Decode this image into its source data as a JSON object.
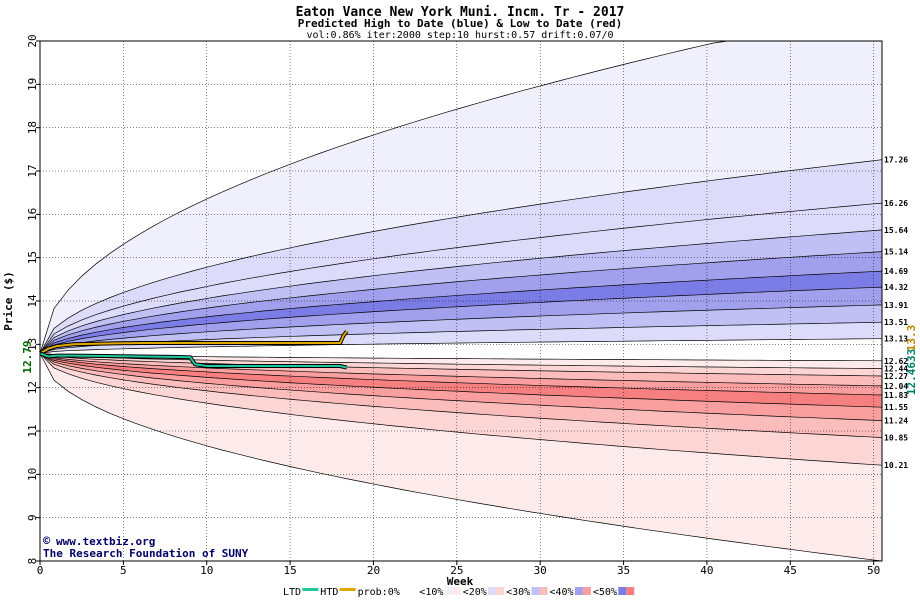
{
  "chart_data": {
    "type": "area",
    "title": "Eaton Vance New York Muni. Incm. Tr - 2017",
    "subtitle": "Predicted High to Date (blue) &  Low to Date (red)",
    "params": "vol:0.86% iter:2000 step:10 hurst:0.57 drift:0.07/0",
    "xlabel": "Week",
    "ylabel": "Price ($)",
    "xlim": [
      0,
      50.5
    ],
    "ylim": [
      8,
      20
    ],
    "x_ticks": [
      0,
      5,
      10,
      15,
      20,
      25,
      30,
      35,
      40,
      45,
      50
    ],
    "y_ticks": [
      8,
      9,
      10,
      11,
      12,
      13,
      14,
      15,
      16,
      17,
      18,
      19,
      20
    ],
    "grid": true,
    "start_price": "12.79",
    "current_labels": {
      "ltd": "12.4633",
      "htd": "13.3"
    },
    "colors": {
      "band0": "#ffffff",
      "band10": "#f0f0fc",
      "band20": "#dcdcfa",
      "band30": "#c0c0f4",
      "band40": "#a0a0ec",
      "band50": "#7c7ce6",
      "rband10": "#fdeaea",
      "rband20": "#fcd5d5",
      "rband30": "#fbbcbc",
      "rband40": "#fa9f9f",
      "rband50": "#f67f7f",
      "htd_line": "#e0a800",
      "ltd_line": "#20c8a0",
      "text_dark": "#000000"
    },
    "high_percentiles": [
      {
        "pct": 0,
        "end": 20.8
      },
      {
        "pct": 10,
        "end": 17.26
      },
      {
        "pct": 20,
        "end": 16.26
      },
      {
        "pct": 30,
        "end": 15.64
      },
      {
        "pct": 40,
        "end": 15.14
      },
      {
        "pct": 50,
        "end": 14.69
      },
      {
        "pct": 60,
        "end": 14.32
      },
      {
        "pct": 70,
        "end": 13.91
      },
      {
        "pct": 80,
        "end": 13.51
      },
      {
        "pct": 90,
        "end": 13.13
      }
    ],
    "low_percentiles": [
      {
        "pct": 90,
        "end": 12.62
      },
      {
        "pct": 80,
        "end": 12.44
      },
      {
        "pct": 70,
        "end": 12.27
      },
      {
        "pct": 60,
        "end": 12.04
      },
      {
        "pct": 50,
        "end": 11.83
      },
      {
        "pct": 40,
        "end": 11.55
      },
      {
        "pct": 30,
        "end": 11.24
      },
      {
        "pct": 20,
        "end": 10.85
      },
      {
        "pct": 10,
        "end": 10.21
      },
      {
        "pct": 0,
        "end": 8.0
      }
    ],
    "right_labels": [
      "17.26",
      "16.26",
      "15.64",
      "15.14",
      "14.69",
      "14.32",
      "13.91",
      "13.51",
      "13.13",
      "12.62",
      "12.44",
      "12.27",
      "12.04",
      "11.83",
      "11.55",
      "11.24",
      "10.85",
      "10.21"
    ],
    "htd_series": {
      "x": [
        0,
        0.5,
        1,
        2,
        4,
        6,
        8,
        10,
        12,
        14,
        16,
        18,
        18.2,
        18.4
      ],
      "y": [
        12.79,
        12.9,
        12.96,
        13.0,
        13.02,
        13.03,
        13.03,
        13.03,
        13.03,
        13.03,
        13.03,
        13.03,
        13.2,
        13.3
      ]
    },
    "ltd_series": {
      "x": [
        0,
        0.5,
        1,
        2,
        4,
        6,
        8,
        9,
        9.3,
        10,
        12,
        14,
        16,
        18,
        18.4
      ],
      "y": [
        12.79,
        12.72,
        12.74,
        12.74,
        12.73,
        12.72,
        12.71,
        12.7,
        12.54,
        12.5,
        12.5,
        12.5,
        12.5,
        12.5,
        12.4633
      ]
    },
    "legend": {
      "items": [
        "LTD",
        "HTD",
        "prob:0%",
        "<10%",
        "<20%",
        "<30%",
        "<40%",
        "<50%"
      ],
      "separator": "<"
    },
    "credits": {
      "website": "www.textbiz.org",
      "org": "The Research Foundation of SUNY",
      "copyright_symbol": "©"
    }
  }
}
